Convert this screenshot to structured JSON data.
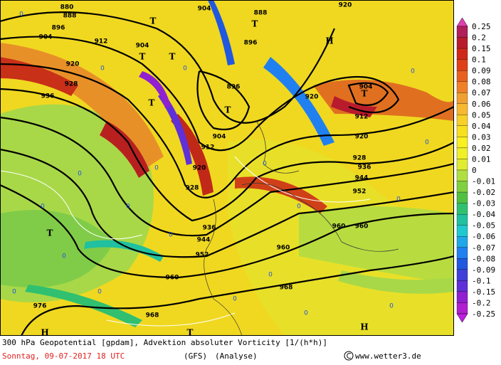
{
  "map": {
    "contour_labels": [
      "880",
      "888",
      "904",
      "888",
      "896",
      "904",
      "912",
      "904",
      "896",
      "920",
      "928",
      "936",
      "896",
      "920",
      "904",
      "912",
      "904",
      "912",
      "920",
      "920",
      "928",
      "936",
      "944",
      "928",
      "952",
      "936",
      "944",
      "960",
      "960",
      "952",
      "960",
      "960",
      "968",
      "976",
      "968",
      "920"
    ],
    "pressure_markers": [
      "T",
      "T",
      "T",
      "T",
      "T",
      "T",
      "T",
      "T",
      "H",
      "H",
      "H",
      "T"
    ],
    "zero_labels": [
      "0",
      "0",
      "0",
      "0",
      "0",
      "0",
      "0",
      "0",
      "0",
      "0",
      "0",
      "0",
      "0",
      "0",
      "0",
      "0",
      "0",
      "0",
      "0",
      "0"
    ]
  },
  "colorbar": {
    "labels": [
      "0.25",
      "0.2",
      "0.15",
      "0.1",
      "0.09",
      "0.08",
      "0.07",
      "0.06",
      "0.05",
      "0.04",
      "0.03",
      "0.02",
      "0.01",
      "0",
      "-0.01",
      "-0.02",
      "-0.03",
      "-0.04",
      "-0.05",
      "-0.06",
      "-0.07",
      "-0.08",
      "-0.09",
      "-0.1",
      "-0.15",
      "-0.2",
      "-0.25"
    ]
  },
  "caption": {
    "title": "300 hPa Geopotential [gpdam], Advektion absoluter Vorticity [1/(h*h)]",
    "date": "Sonntag, 09-07-2017  18 UTC",
    "model": "(GFS)",
    "analysis": "(Analyse)",
    "credit": "www.wetter3.de"
  }
}
